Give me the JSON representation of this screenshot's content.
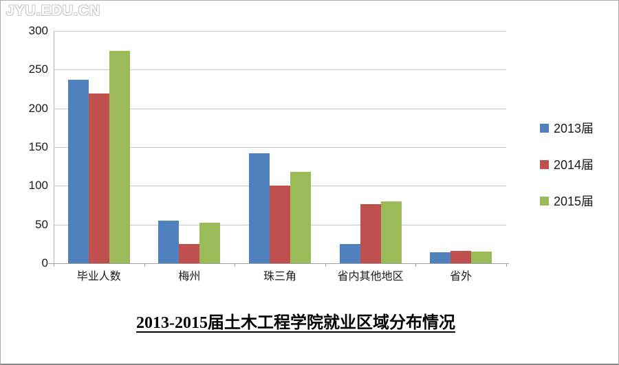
{
  "watermark": "JYU.EDU.CN",
  "title": "2013-2015届土木工程学院就业区域分布情况",
  "colors": {
    "series_2013": "#4F81BD",
    "series_2014": "#C0504D",
    "series_2015": "#9BBB59",
    "gridline": "#c9c9c9",
    "axis": "#9f9f9f"
  },
  "chart_data": {
    "type": "bar",
    "title": "2013-2015届土木工程学院就业区域分布情况",
    "categories": [
      "毕业人数",
      "梅州",
      "珠三角",
      "省内其他地区",
      "省外"
    ],
    "series": [
      {
        "name": "2013届",
        "color": "#4F81BD",
        "values": [
          237,
          55,
          142,
          25,
          14
        ]
      },
      {
        "name": "2014届",
        "color": "#C0504D",
        "values": [
          219,
          25,
          100,
          76,
          16
        ]
      },
      {
        "name": "2015届",
        "color": "#9BBB59",
        "values": [
          274,
          52,
          118,
          80,
          15
        ]
      }
    ],
    "xlabel": "",
    "ylabel": "",
    "ylim": [
      0,
      300
    ],
    "yticks": [
      0,
      50,
      100,
      150,
      200,
      250,
      300
    ],
    "grid": true,
    "legend_position": "right"
  }
}
